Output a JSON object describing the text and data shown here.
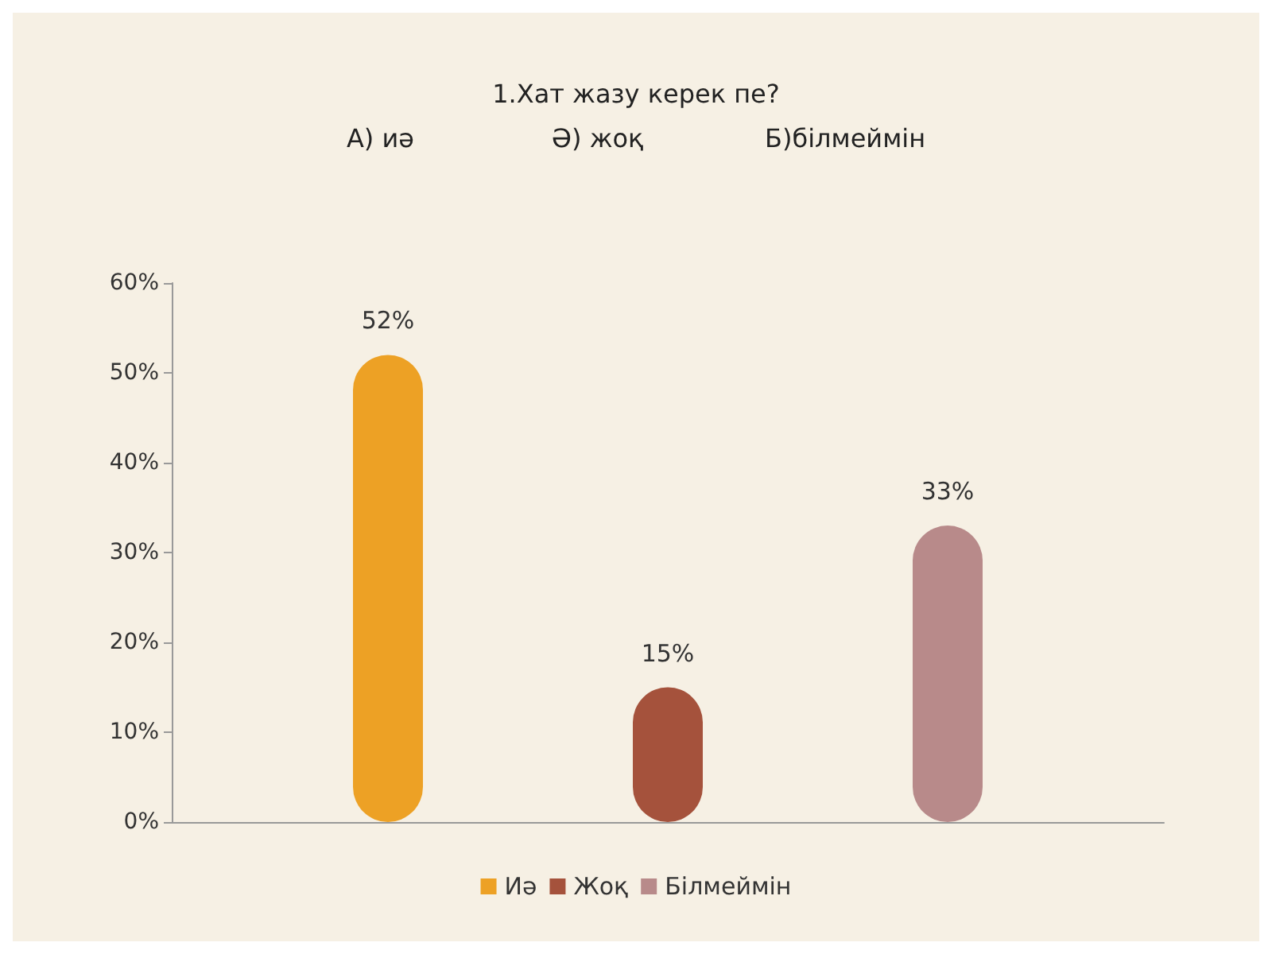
{
  "chart_data": {
    "type": "bar",
    "title": "1.Хат жазу керек пе?",
    "subtitle": "А) иә                 Ә) жоқ               Б)білмеймін",
    "categories": [
      null
    ],
    "series": [
      {
        "name": "Иә",
        "color": "#eda125",
        "values": [
          52
        ],
        "value_labels": [
          "52%"
        ]
      },
      {
        "name": "Жоқ",
        "color": "#a5523c",
        "values": [
          15
        ],
        "value_labels": [
          "15%"
        ]
      },
      {
        "name": "Білмеймін",
        "color": "#b88a8a",
        "values": [
          33
        ],
        "value_labels": [
          "33%"
        ]
      }
    ],
    "ylim": [
      0,
      60
    ],
    "yticks": [
      {
        "value": 0,
        "label": "0%"
      },
      {
        "value": 10,
        "label": "10%"
      },
      {
        "value": 20,
        "label": "20%"
      },
      {
        "value": 30,
        "label": "30%"
      },
      {
        "value": 40,
        "label": "40%"
      },
      {
        "value": 50,
        "label": "50%"
      },
      {
        "value": 60,
        "label": "60%"
      }
    ],
    "grid": false,
    "legend": "bottom"
  }
}
